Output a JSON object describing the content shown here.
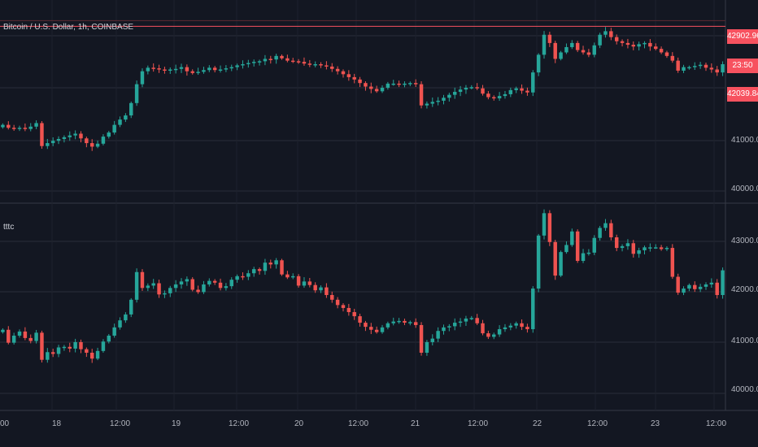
{
  "top_pane": {
    "symbol_label": "Bitcoin / U.S. Dollar, 1h, COINBASE",
    "price_tag_value": "42902.96",
    "price_tag_timer": "23:50",
    "price_tag_bottom": "42039.84",
    "y_ticks": [
      "41000.00",
      "40000.00"
    ]
  },
  "bottom_pane": {
    "indicator_label": "tttc",
    "y_ticks": [
      "43000.00",
      "42000.00",
      "41000.00",
      "40000.00"
    ]
  },
  "time_axis": {
    "labels": [
      "00",
      "18",
      "12:00",
      "19",
      "12:00",
      "20",
      "12:00",
      "21",
      "12:00",
      "22",
      "12:00",
      "23",
      "12:00"
    ]
  },
  "colors": {
    "background": "#131722",
    "grid": "#2a2e39",
    "up": "#26a69a",
    "down": "#ef5350",
    "price_line": "#f7525f",
    "text": "#b2b5be"
  },
  "chart_data": [
    {
      "type": "candlestick",
      "title": "Bitcoin / U.S. Dollar, 1h, COINBASE",
      "ylim": [
        39900,
        43350
      ],
      "close": [
        41230,
        41180,
        41160,
        41180,
        41160,
        41200,
        41260,
        40870,
        40920,
        40960,
        40990,
        41020,
        41050,
        41080,
        41000,
        40920,
        40860,
        40910,
        41030,
        41100,
        41230,
        41320,
        41390,
        41600,
        41920,
        42140,
        42200,
        42190,
        42170,
        42160,
        42170,
        42180,
        42210,
        42140,
        42110,
        42130,
        42160,
        42200,
        42160,
        42170,
        42190,
        42210,
        42240,
        42260,
        42280,
        42300,
        42310,
        42350,
        42340,
        42400,
        42360,
        42320,
        42310,
        42300,
        42270,
        42250,
        42260,
        42240,
        42220,
        42180,
        42140,
        42090,
        42040,
        42000,
        41940,
        41880,
        41840,
        41800,
        41860,
        41930,
        41930,
        41910,
        41930,
        41940,
        41920,
        41560,
        41590,
        41620,
        41640,
        41690,
        41740,
        41790,
        41830,
        41860,
        41870,
        41850,
        41760,
        41700,
        41680,
        41720,
        41750,
        41820,
        41850,
        41810,
        41780,
        42120,
        42420,
        42760,
        42620,
        42350,
        42460,
        42550,
        42620,
        42500,
        42460,
        42420,
        42580,
        42760,
        42820,
        42720,
        42650,
        42620,
        42590,
        42560,
        42600,
        42620,
        42560,
        42520,
        42460,
        42400,
        42320,
        42150,
        42210,
        42210,
        42230,
        42250,
        42200,
        42170,
        42120,
        42260
      ]
    },
    {
      "type": "candlestick",
      "title": "tttc",
      "ylim": [
        39900,
        43420
      ],
      "close": [
        41270,
        41050,
        41170,
        41240,
        41130,
        41080,
        41220,
        40760,
        40890,
        40860,
        40970,
        40980,
        40950,
        41060,
        40940,
        40880,
        40780,
        40910,
        41070,
        41170,
        41310,
        41430,
        41530,
        41780,
        42250,
        41980,
        42020,
        42060,
        41870,
        41890,
        41980,
        42040,
        42090,
        42130,
        41950,
        41910,
        42040,
        42100,
        42070,
        41980,
        42010,
        42120,
        42180,
        42170,
        42230,
        42300,
        42270,
        42410,
        42380,
        42450,
        42210,
        42160,
        42180,
        42020,
        42090,
        42030,
        41940,
        41990,
        41860,
        41780,
        41690,
        41640,
        41570,
        41500,
        41390,
        41320,
        41270,
        41230,
        41310,
        41380,
        41410,
        41420,
        41390,
        41400,
        41350,
        40880,
        41060,
        41120,
        41250,
        41310,
        41330,
        41390,
        41410,
        41460,
        41470,
        41380,
        41210,
        41150,
        41190,
        41280,
        41310,
        41340,
        41380,
        41320,
        41280,
        41970,
        42870,
        43250,
        42760,
        42190,
        42590,
        42710,
        42940,
        42440,
        42570,
        42580,
        42830,
        43000,
        43080,
        42840,
        42660,
        42690,
        42740,
        42560,
        42620,
        42670,
        42670,
        42670,
        42640,
        42660,
        42170,
        41900,
        41970,
        42030,
        41960,
        42000,
        42040,
        42070,
        41860,
        42280
      ]
    }
  ]
}
